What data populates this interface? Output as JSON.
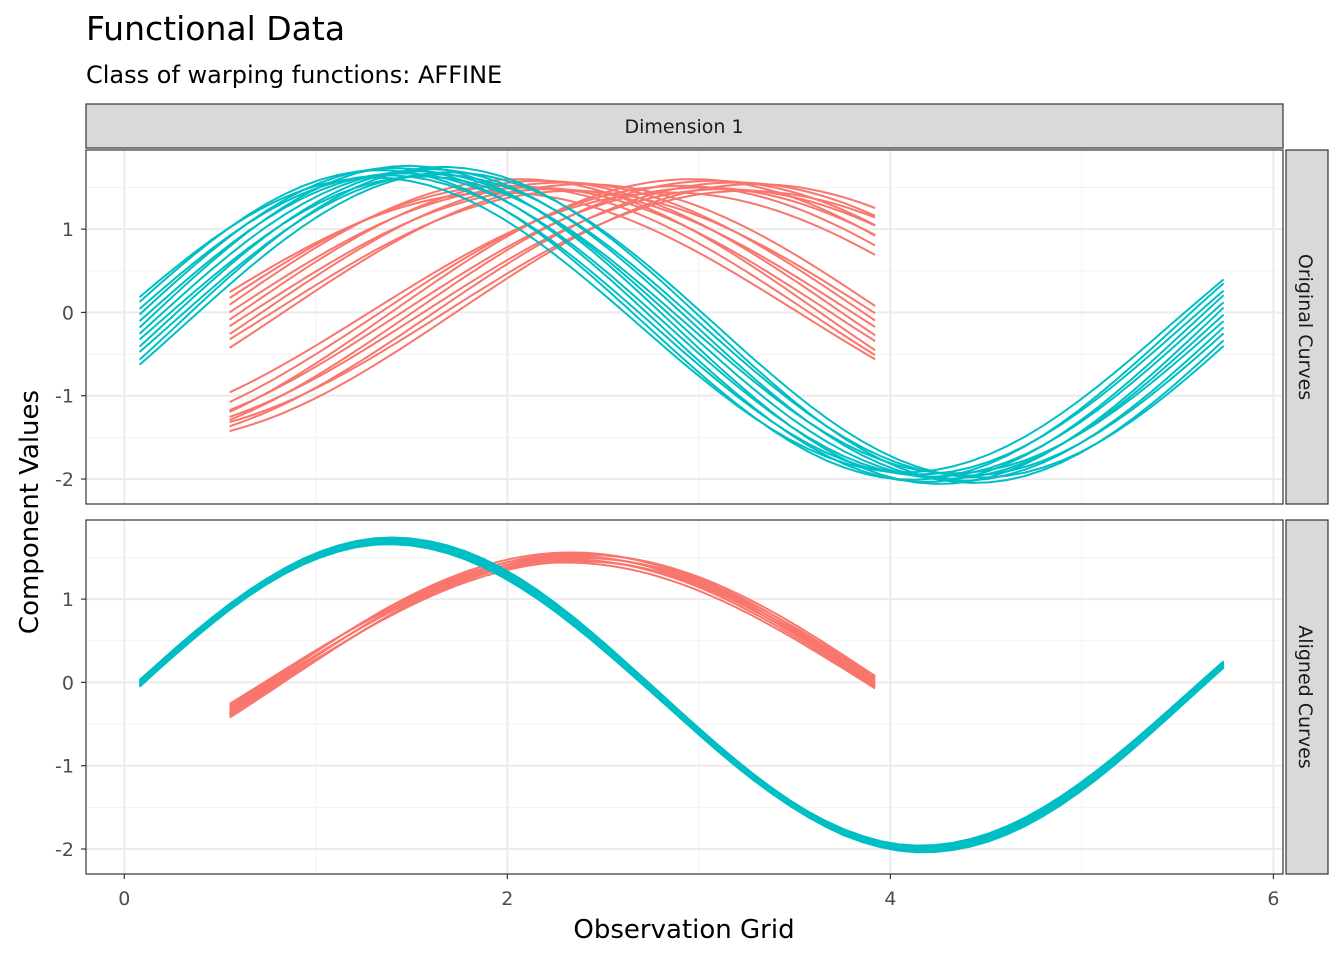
{
  "title": "Functional Data",
  "subtitle": "Class of warping functions: AFFINE",
  "facet_col": "Dimension 1",
  "facet_rows": [
    "Original Curves",
    "Aligned Curves"
  ],
  "xlabel": "Observation Grid",
  "ylabel": "Component Values",
  "x_ticks": [
    "0",
    "2",
    "4",
    "6"
  ],
  "y_ticks": [
    "-2",
    "-1",
    "0",
    "1"
  ],
  "colors": {
    "red": "#F8766D",
    "teal": "#00BFC4"
  },
  "chart_data": {
    "type": "line",
    "xlim": [
      -0.2,
      6.05
    ],
    "ylim": [
      -2.3,
      1.95
    ],
    "grid": true,
    "legend": "none",
    "panels": [
      {
        "name": "Original Curves",
        "groups": [
          {
            "color": "red",
            "shape": "cos",
            "center": 3.1,
            "period": 6.28,
            "amp": 1.52,
            "x_range": [
              0.55,
              3.92
            ],
            "amp_spread": [
              -0.08,
              0.08
            ],
            "shift_spread": [
              -0.25,
              0.2
            ],
            "count": 9
          },
          {
            "color": "red",
            "shape": "cos",
            "center": 2.2,
            "period": 6.28,
            "amp": 1.52,
            "x_range": [
              0.55,
              3.92
            ],
            "amp_spread": [
              -0.08,
              0.08
            ],
            "shift_spread": [
              -0.25,
              0.2
            ],
            "count": 9
          },
          {
            "color": "teal",
            "shape": "cos",
            "center": 1.35,
            "period": 5.55,
            "amp": 1.85,
            "offset": -0.15,
            "x_range": [
              0.08,
              5.74
            ],
            "amp_spread": [
              -0.08,
              0.06
            ],
            "shift_spread": [
              -0.05,
              0.35
            ],
            "count": 12
          }
        ]
      },
      {
        "name": "Aligned Curves",
        "groups": [
          {
            "color": "red",
            "shape": "cos",
            "center": 2.35,
            "period": 6.28,
            "amp": 1.5,
            "x_range": [
              0.55,
              3.92
            ],
            "amp_spread": [
              -0.06,
              0.06
            ],
            "shift_spread": [
              -0.05,
              0.05
            ],
            "count": 10
          },
          {
            "color": "teal",
            "shape": "cos",
            "center": 1.4,
            "period": 5.55,
            "amp": 1.85,
            "offset": -0.15,
            "x_range": [
              0.08,
              5.74
            ],
            "amp_spread": [
              -0.04,
              0.04
            ],
            "shift_spread": [
              -0.02,
              0.02
            ],
            "count": 12
          }
        ]
      }
    ]
  }
}
